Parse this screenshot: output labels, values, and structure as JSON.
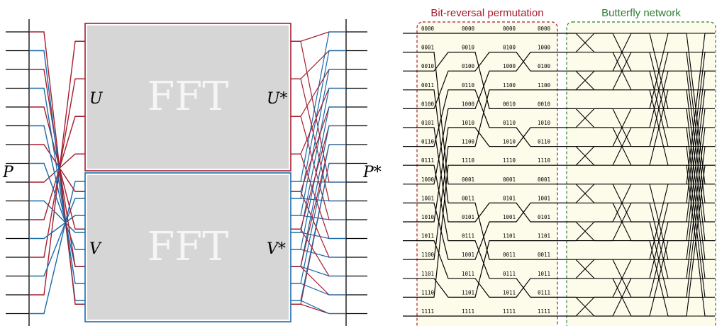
{
  "left_diagram": {
    "input_label": "P",
    "output_label": "P*",
    "blocks": [
      {
        "text": "FFT",
        "input_label": "U",
        "output_label": "U*"
      },
      {
        "text": "FFT",
        "input_label": "V",
        "output_label": "V*"
      }
    ]
  },
  "right_diagram": {
    "bit_reversal_title": "Bit-reversal permutation",
    "butterfly_title": "Butterfly network",
    "stages": [
      [
        "0000",
        "0001",
        "0010",
        "0011",
        "0100",
        "0101",
        "0110",
        "0111",
        "1000",
        "1001",
        "1010",
        "1011",
        "1100",
        "1101",
        "1110",
        "1111"
      ],
      [
        "0000",
        "0010",
        "0100",
        "0110",
        "1000",
        "1010",
        "1100",
        "1110",
        "0001",
        "0011",
        "0101",
        "0111",
        "1001",
        "1011",
        "1101",
        "1111"
      ],
      [
        "0000",
        "0100",
        "1000",
        "1100",
        "0010",
        "0110",
        "1010",
        "1110",
        "0001",
        "0101",
        "1001",
        "1101",
        "0011",
        "0111",
        "1011",
        "1111"
      ],
      [
        "0000",
        "1000",
        "0100",
        "1100",
        "0010",
        "1010",
        "0110",
        "1110",
        "0001",
        "1001",
        "0101",
        "1101",
        "0011",
        "1011",
        "0111",
        "1111"
      ]
    ]
  },
  "colors": {
    "red": "#a51d2d",
    "blue": "#1a6aa8",
    "green": "#2e7d32",
    "grey_block": "#d6d6d6",
    "cream": "#fdfbea"
  }
}
